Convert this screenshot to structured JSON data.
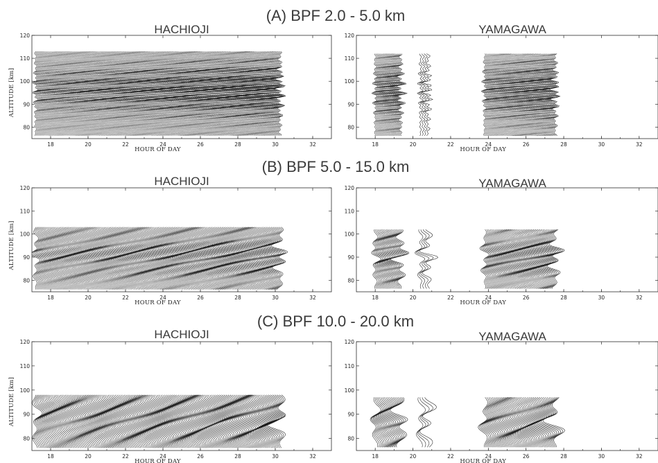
{
  "sections": [
    {
      "title": "(A) BPF 2.0 - 5.0 km",
      "panels": [
        {
          "station": "HACHIOJI",
          "ylabel": "ALTITUDE [km]",
          "xlabel": "HOUR OF DAY",
          "xticks": [
            "18",
            "20",
            "22",
            "24",
            "26",
            "28",
            "30",
            "32"
          ],
          "yticks": [
            "80",
            "90",
            "100",
            "110",
            "120"
          ]
        },
        {
          "station": "YAMAGAWA",
          "ylabel": "",
          "xlabel": "HOUR OF DAY",
          "xticks": [
            "18",
            "20",
            "22",
            "24",
            "26",
            "28",
            "30",
            "32"
          ],
          "yticks": [
            "80",
            "90",
            "100",
            "110",
            "120"
          ]
        }
      ]
    },
    {
      "title": "(B) BPF 5.0 - 15.0 km",
      "panels": [
        {
          "station": "HACHIOJI",
          "ylabel": "ALTITUDE [km]",
          "xlabel": "HOUR OF DAY",
          "xticks": [
            "18",
            "20",
            "22",
            "24",
            "26",
            "28",
            "30",
            "32"
          ],
          "yticks": [
            "80",
            "90",
            "100",
            "110",
            "120"
          ]
        },
        {
          "station": "YAMAGAWA",
          "ylabel": "",
          "xlabel": "HOUR OF DAY",
          "xticks": [
            "18",
            "20",
            "22",
            "24",
            "26",
            "28",
            "30",
            "32"
          ],
          "yticks": [
            "80",
            "90",
            "100",
            "110",
            "120"
          ]
        }
      ]
    },
    {
      "title": "(C) BPF 10.0 - 20.0 km",
      "panels": [
        {
          "station": "HACHIOJI",
          "ylabel": "ALTITUDE [km]",
          "xlabel": "HOUR OF DAY",
          "xticks": [
            "18",
            "20",
            "22",
            "24",
            "26",
            "28",
            "30",
            "32"
          ],
          "yticks": [
            "80",
            "90",
            "100",
            "110",
            "120"
          ]
        },
        {
          "station": "YAMAGAWA",
          "ylabel": "",
          "xlabel": "HOUR OF DAY",
          "xticks": [
            "18",
            "20",
            "22",
            "24",
            "26",
            "28",
            "30",
            "32"
          ],
          "yticks": [
            "80",
            "90",
            "100",
            "110",
            "120"
          ]
        }
      ]
    }
  ],
  "chart_data": [
    {
      "type": "line",
      "title": "(A) BPF 2.0 - 5.0 km",
      "subtitle": "HACHIOJI",
      "xlabel": "HOUR OF DAY",
      "ylabel": "ALTITUDE [km]",
      "xlim": [
        17,
        33
      ],
      "ylim": [
        75,
        120
      ],
      "trace_altitude_range": [
        76,
        113
      ],
      "observation_periods_hours": [
        [
          17.2,
          30.3
        ]
      ],
      "wavelength_band_km": [
        2.0,
        5.0
      ]
    },
    {
      "type": "line",
      "title": "(A) BPF 2.0 - 5.0 km",
      "subtitle": "YAMAGAWA",
      "xlabel": "HOUR OF DAY",
      "ylabel": "",
      "xlim": [
        17,
        33
      ],
      "ylim": [
        75,
        120
      ],
      "trace_altitude_range": [
        76,
        112
      ],
      "observation_periods_hours": [
        [
          18.0,
          19.4
        ],
        [
          20.4,
          20.8
        ],
        [
          23.8,
          27.6
        ]
      ],
      "wavelength_band_km": [
        2.0,
        5.0
      ]
    },
    {
      "type": "line",
      "title": "(B) BPF 5.0 - 15.0 km",
      "subtitle": "HACHIOJI",
      "xlabel": "HOUR OF DAY",
      "ylabel": "ALTITUDE [km]",
      "xlim": [
        17,
        33
      ],
      "ylim": [
        75,
        120
      ],
      "trace_altitude_range": [
        76,
        103
      ],
      "observation_periods_hours": [
        [
          17.2,
          30.3
        ]
      ],
      "wavelength_band_km": [
        5.0,
        15.0
      ]
    },
    {
      "type": "line",
      "title": "(B) BPF 5.0 - 15.0 km",
      "subtitle": "YAMAGAWA",
      "xlabel": "HOUR OF DAY",
      "ylabel": "",
      "xlim": [
        17,
        33
      ],
      "ylim": [
        75,
        120
      ],
      "trace_altitude_range": [
        76,
        102
      ],
      "observation_periods_hours": [
        [
          18.0,
          19.4
        ],
        [
          20.4,
          20.8
        ],
        [
          23.8,
          27.6
        ]
      ],
      "wavelength_band_km": [
        5.0,
        15.0
      ]
    },
    {
      "type": "line",
      "title": "(C) BPF 10.0 - 20.0 km",
      "subtitle": "HACHIOJI",
      "xlabel": "HOUR OF DAY",
      "ylabel": "ALTITUDE [km]",
      "xlim": [
        17,
        33
      ],
      "ylim": [
        75,
        120
      ],
      "trace_altitude_range": [
        76,
        98
      ],
      "observation_periods_hours": [
        [
          17.2,
          30.3
        ]
      ],
      "wavelength_band_km": [
        10.0,
        20.0
      ]
    },
    {
      "type": "line",
      "title": "(C) BPF 10.0 - 20.0 km",
      "subtitle": "YAMAGAWA",
      "xlabel": "HOUR OF DAY",
      "ylabel": "",
      "xlim": [
        17,
        33
      ],
      "ylim": [
        75,
        120
      ],
      "trace_altitude_range": [
        76,
        97
      ],
      "observation_periods_hours": [
        [
          18.0,
          19.4
        ],
        [
          20.4,
          20.8
        ],
        [
          23.8,
          27.6
        ]
      ],
      "wavelength_band_km": [
        10.0,
        20.0
      ]
    }
  ]
}
